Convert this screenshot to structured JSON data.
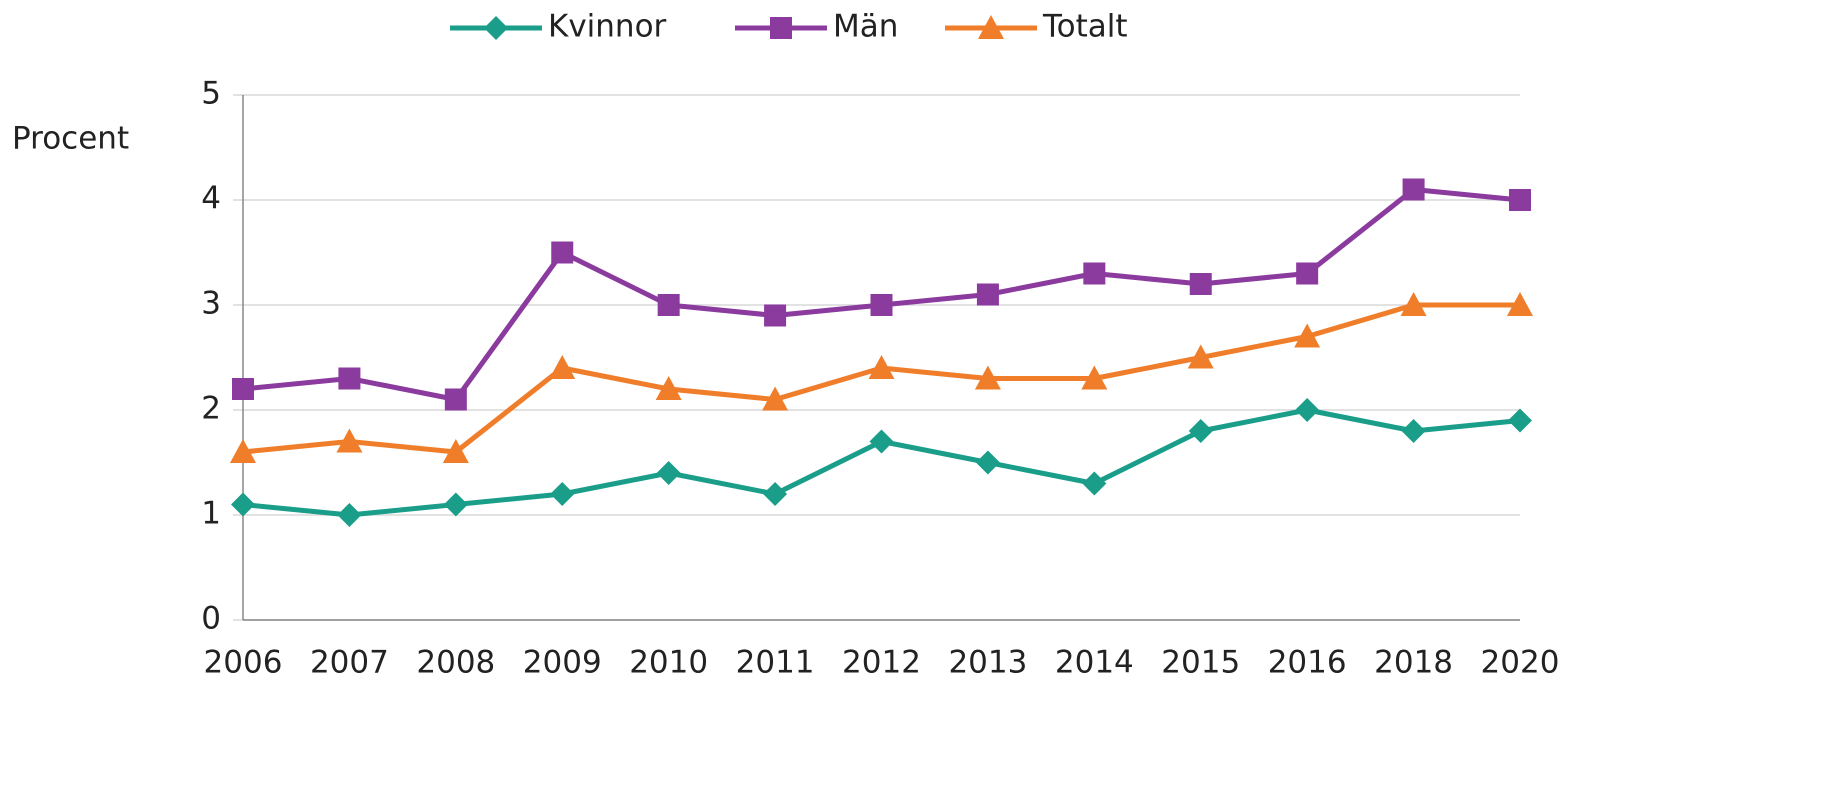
{
  "chart_data": {
    "type": "line",
    "y_label": "Procent",
    "categories": [
      "2006",
      "2007",
      "2008",
      "2009",
      "2010",
      "2011",
      "2012",
      "2013",
      "2014",
      "2015",
      "2016",
      "2018",
      "2020"
    ],
    "series": [
      {
        "name": "Kvinnor",
        "color": "#1a9e8a",
        "marker": "diamond",
        "values": [
          1.1,
          1.0,
          1.1,
          1.2,
          1.4,
          1.2,
          1.7,
          1.5,
          1.3,
          1.8,
          2.0,
          1.8,
          1.9
        ]
      },
      {
        "name": "Män",
        "color": "#8b3a9e",
        "marker": "square",
        "values": [
          2.2,
          2.3,
          2.1,
          3.5,
          3.0,
          2.9,
          3.0,
          3.1,
          3.3,
          3.2,
          3.3,
          4.1,
          4.0
        ]
      },
      {
        "name": "Totalt",
        "color": "#f07d2a",
        "marker": "triangle",
        "values": [
          1.6,
          1.7,
          1.6,
          2.4,
          2.2,
          2.1,
          2.4,
          2.3,
          2.3,
          2.5,
          2.7,
          3.0,
          3.0
        ]
      }
    ],
    "ylim": [
      0,
      5
    ],
    "yticks": [
      0,
      1,
      2,
      3,
      4,
      5
    ],
    "grid": true,
    "legend": "top"
  }
}
